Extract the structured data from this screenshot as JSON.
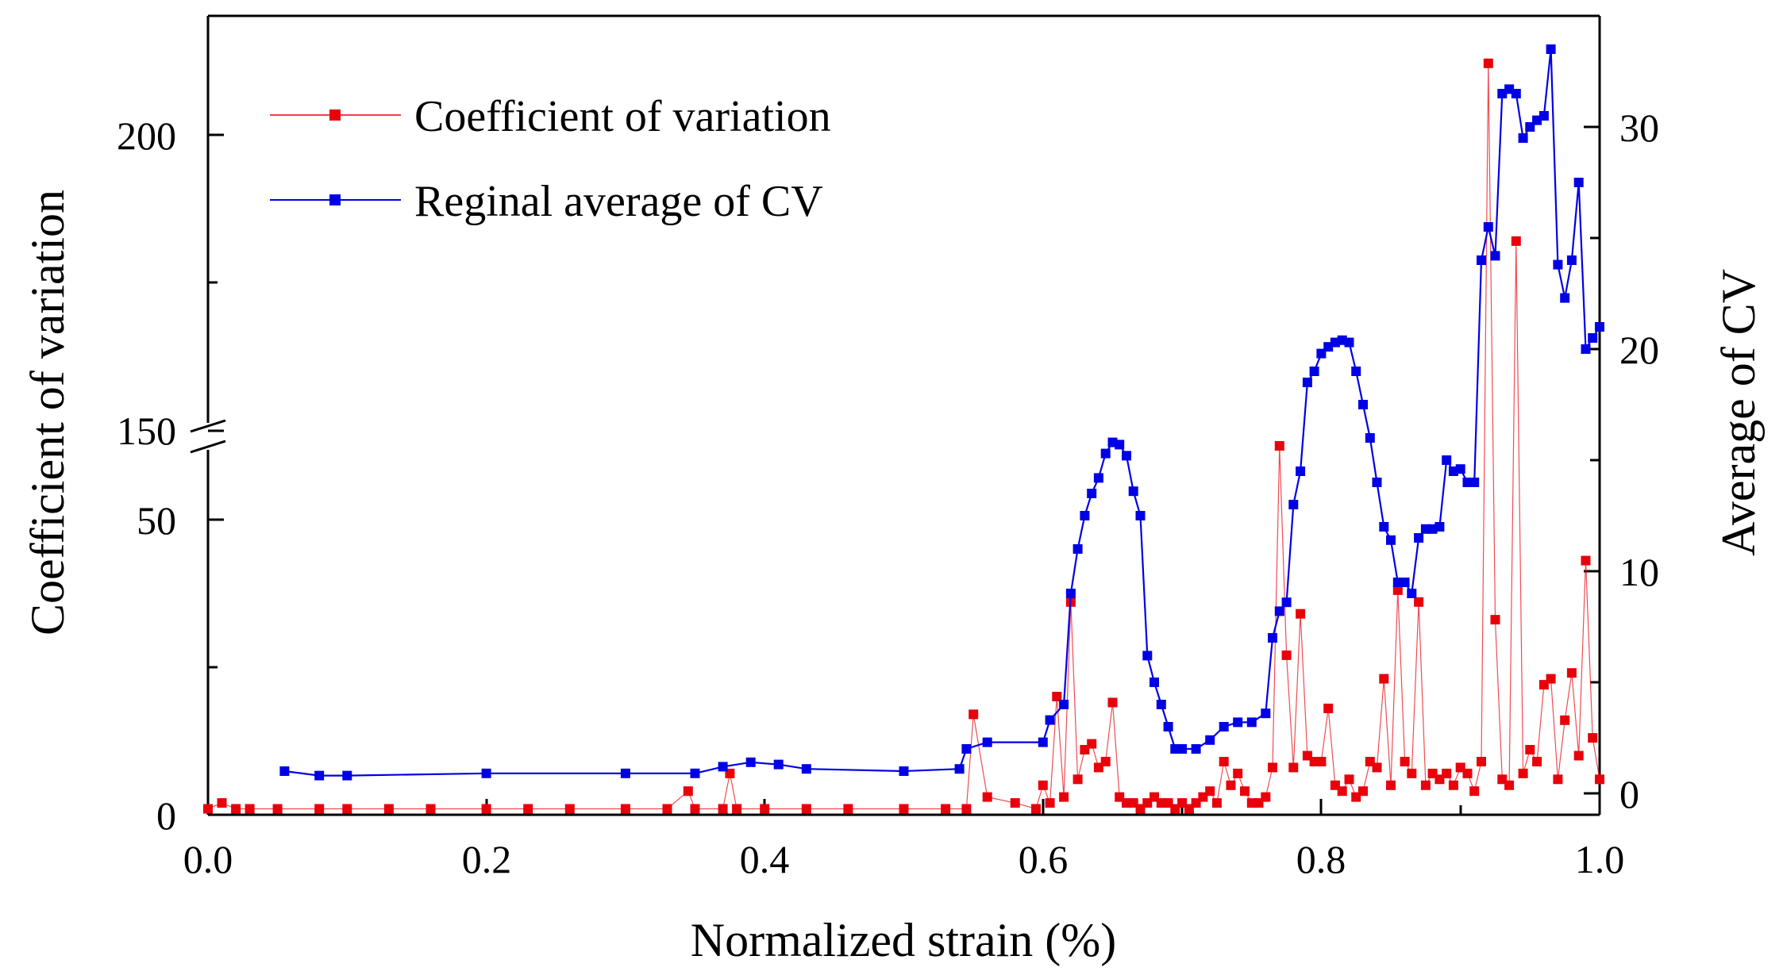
{
  "chart_data": {
    "type": "line",
    "xlabel": "Normalized strain (%)",
    "ylabel_left": "Coefficient of variation",
    "ylabel_right": "Average of CV",
    "xlim": [
      0.0,
      1.0
    ],
    "x_ticks": [
      "0.0",
      "0.2",
      "0.4",
      "0.6",
      "0.8",
      "1.0"
    ],
    "y_left_axis_break": {
      "lower_range": [
        0,
        60
      ],
      "upper_range": [
        150,
        220
      ],
      "lower_ticks": [
        "0",
        "50"
      ],
      "upper_ticks": [
        "150",
        "200"
      ],
      "break_label": "150"
    },
    "y_right_range": [
      -1,
      34
    ],
    "y_right_ticks": [
      "0",
      "10",
      "20",
      "30"
    ],
    "legend_position": "top-left",
    "colors": {
      "cv": "#e8000b",
      "avg": "#0000e6",
      "axis": "#000000"
    },
    "series": [
      {
        "name": "Coefficient of variation",
        "axis": "left",
        "color": "#e8000b",
        "x": [
          0.0,
          0.01,
          0.02,
          0.03,
          0.05,
          0.08,
          0.1,
          0.13,
          0.16,
          0.2,
          0.23,
          0.26,
          0.3,
          0.33,
          0.345,
          0.35,
          0.37,
          0.375,
          0.38,
          0.4,
          0.43,
          0.46,
          0.5,
          0.53,
          0.545,
          0.55,
          0.56,
          0.58,
          0.595,
          0.6,
          0.605,
          0.61,
          0.615,
          0.62,
          0.625,
          0.63,
          0.635,
          0.64,
          0.645,
          0.65,
          0.655,
          0.66,
          0.665,
          0.67,
          0.675,
          0.68,
          0.685,
          0.69,
          0.695,
          0.7,
          0.705,
          0.71,
          0.715,
          0.72,
          0.725,
          0.73,
          0.735,
          0.74,
          0.745,
          0.75,
          0.755,
          0.76,
          0.765,
          0.77,
          0.775,
          0.78,
          0.785,
          0.79,
          0.795,
          0.8,
          0.805,
          0.81,
          0.815,
          0.82,
          0.825,
          0.83,
          0.835,
          0.84,
          0.845,
          0.85,
          0.855,
          0.86,
          0.865,
          0.87,
          0.875,
          0.88,
          0.885,
          0.89,
          0.895,
          0.9,
          0.905,
          0.91,
          0.915,
          0.92,
          0.925,
          0.93,
          0.935,
          0.94,
          0.945,
          0.95,
          0.955,
          0.96,
          0.965,
          0.97,
          0.975,
          0.98,
          0.985,
          0.99,
          0.995,
          1.0
        ],
        "values": [
          1,
          2,
          1,
          1,
          1,
          1,
          1,
          1,
          1,
          1,
          1,
          1,
          1,
          1,
          4,
          1,
          1,
          7,
          1,
          1,
          1,
          1,
          1,
          1,
          1,
          17,
          3,
          2,
          1,
          5,
          2,
          20,
          3,
          36,
          6,
          11,
          12,
          8,
          9,
          19,
          3,
          2,
          2,
          1,
          2,
          3,
          2,
          2,
          1,
          2,
          1,
          2,
          3,
          4,
          2,
          9,
          5,
          7,
          4,
          2,
          2,
          3,
          8,
          61,
          27,
          8,
          34,
          10,
          9,
          9,
          18,
          5,
          4,
          6,
          3,
          4,
          9,
          8,
          23,
          5,
          38,
          9,
          7,
          36,
          5,
          7,
          6,
          7,
          5,
          8,
          7,
          4,
          9,
          212,
          33,
          6,
          5,
          182,
          7,
          11,
          9,
          22,
          23,
          6,
          16,
          24,
          10,
          43,
          13,
          6
        ]
      },
      {
        "name": "Reginal average of CV",
        "axis": "right",
        "color": "#0000e6",
        "x": [
          0.055,
          0.08,
          0.1,
          0.2,
          0.3,
          0.35,
          0.37,
          0.39,
          0.41,
          0.43,
          0.5,
          0.54,
          0.545,
          0.56,
          0.6,
          0.605,
          0.615,
          0.62,
          0.625,
          0.63,
          0.635,
          0.64,
          0.645,
          0.65,
          0.655,
          0.66,
          0.665,
          0.67,
          0.675,
          0.68,
          0.685,
          0.69,
          0.695,
          0.7,
          0.71,
          0.72,
          0.73,
          0.74,
          0.75,
          0.76,
          0.765,
          0.77,
          0.775,
          0.78,
          0.785,
          0.79,
          0.795,
          0.8,
          0.805,
          0.81,
          0.815,
          0.82,
          0.825,
          0.83,
          0.835,
          0.84,
          0.845,
          0.85,
          0.855,
          0.86,
          0.865,
          0.87,
          0.875,
          0.88,
          0.885,
          0.89,
          0.895,
          0.9,
          0.905,
          0.91,
          0.915,
          0.92,
          0.925,
          0.93,
          0.935,
          0.94,
          0.945,
          0.95,
          0.955,
          0.96,
          0.965,
          0.97,
          0.975,
          0.98,
          0.985,
          0.99,
          0.995,
          1.0
        ],
        "values": [
          1.0,
          0.8,
          0.8,
          0.9,
          0.9,
          0.9,
          1.2,
          1.4,
          1.3,
          1.1,
          1.0,
          1.1,
          2.0,
          2.3,
          2.3,
          3.3,
          4.0,
          9.0,
          11.0,
          12.5,
          13.5,
          14.2,
          15.3,
          15.8,
          15.7,
          15.2,
          13.6,
          12.5,
          6.2,
          5.0,
          4.0,
          3.0,
          2.0,
          2.0,
          2.0,
          2.4,
          3.0,
          3.2,
          3.2,
          3.6,
          7.0,
          8.2,
          8.6,
          13.0,
          14.5,
          18.5,
          19.0,
          19.8,
          20.1,
          20.3,
          20.4,
          20.3,
          19.0,
          17.5,
          16.0,
          14.0,
          12.0,
          11.4,
          9.5,
          9.5,
          9.0,
          11.5,
          11.9,
          11.9,
          12.0,
          15.0,
          14.5,
          14.6,
          14.0,
          14.0,
          24.0,
          25.5,
          24.2,
          31.5,
          31.7,
          31.5,
          29.5,
          30.0,
          30.3,
          30.5,
          33.5,
          23.8,
          22.3,
          24.0,
          27.5,
          20.0,
          20.5,
          21.0
        ]
      }
    ]
  },
  "legend": {
    "items": [
      {
        "label": "Coefficient of variation",
        "color": "#e8000b"
      },
      {
        "label": "Reginal average of CV",
        "color": "#0000e6"
      }
    ]
  }
}
